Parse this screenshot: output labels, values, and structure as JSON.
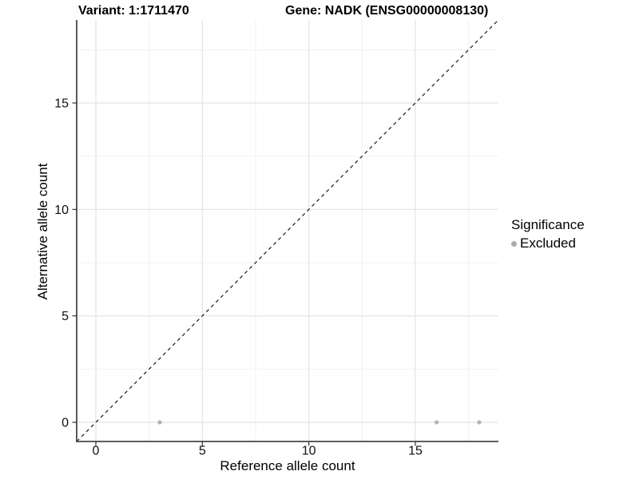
{
  "chart_data": {
    "type": "scatter",
    "title_left": "Variant: 1:1711470",
    "title_right": "Gene: NADK (ENSG00000008130)",
    "xlabel": "Reference allele count",
    "ylabel": "Alternative allele count",
    "xlim": [
      -0.9,
      18.9
    ],
    "ylim": [
      -0.9,
      18.9
    ],
    "xticks": [
      0,
      5,
      10,
      15
    ],
    "yticks": [
      0,
      5,
      10,
      15
    ],
    "xminor": [
      2.5,
      7.5,
      12.5,
      17.5
    ],
    "yminor": [
      2.5,
      7.5,
      12.5,
      17.5
    ],
    "grid": "major+minor",
    "identity_line": {
      "slope": 1,
      "intercept": 0,
      "style": "dashed",
      "color": "#1a1a1a"
    },
    "series": [
      {
        "name": "Excluded",
        "color": "#b3b3b3",
        "marker": "circle",
        "points": [
          {
            "x": 3,
            "y": 0
          },
          {
            "x": 16,
            "y": 0
          },
          {
            "x": 18,
            "y": 0
          }
        ]
      }
    ],
    "legend": {
      "title": "Significance",
      "position": "right",
      "entries": [
        {
          "label": "Excluded",
          "color": "#a9a9a9"
        }
      ]
    }
  },
  "style": {
    "background": "#ffffff",
    "grid_major_color": "#e3e3e3",
    "grid_minor_color": "#f1f1f1",
    "axis_line_color": "#474747",
    "tick_color": "#333333",
    "tick_label_color": "#111111",
    "point_color": "#b3b3b3",
    "title_color": "#000000"
  }
}
